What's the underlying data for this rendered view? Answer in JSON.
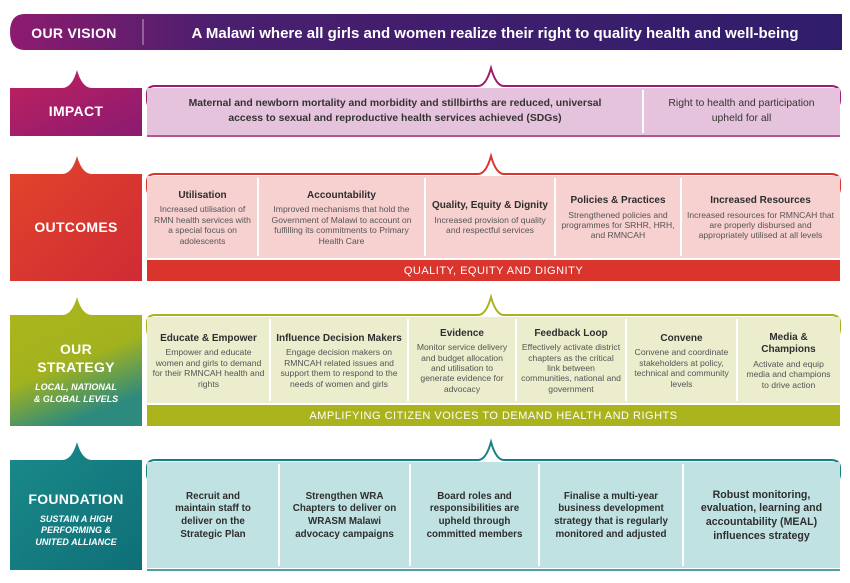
{
  "colors": {
    "vision": "#3d1f6e",
    "impact": "#9c1d6a",
    "impact_fill": "#e6c1dc",
    "outcomes": "#d9352d",
    "outcomes_fill": "#f6cfcf",
    "strategy": "#aab31c",
    "strategy_fill": "#eaedcc",
    "foundation": "#178084",
    "foundation_fill": "#bfe1e1"
  },
  "vision": {
    "label": "OUR VISION",
    "text": "A Malawi where all girls and women realize their right to quality health and well-being"
  },
  "impact": {
    "label": "IMPACT",
    "cells": [
      {
        "text": "Maternal and newborn mortality and morbidity and stillbirths are reduced, universal access to sexual and reproductive health services achieved (SDGs)"
      },
      {
        "text": "Right to health and participation upheld for all"
      }
    ]
  },
  "outcomes": {
    "label": "OUTCOMES",
    "cells": [
      {
        "title": "Utilisation",
        "body": "Increased utilisation of RMN health services with a special focus on adolescents"
      },
      {
        "title": "Accountability",
        "body": "Improved mechanisms that hold the Government of Malawi to account on fulfilling its commitments to Primary Health Care"
      },
      {
        "title": "Quality, Equity & Dignity",
        "body": "Increased provision of quality and respectful services"
      },
      {
        "title": "Policies & Practices",
        "body": "Strengthened policies and programmes for SRHR, HRH, and RMNCAH"
      },
      {
        "title": "Increased Resources",
        "body": "Increased resources for RMNCAH that are properly disbursed and appropriately utilised at all levels"
      }
    ],
    "strip": "QUALITY, EQUITY AND DIGNITY"
  },
  "strategy": {
    "label": "OUR STRATEGY",
    "sublabel_1": "LOCAL, NATIONAL",
    "sublabel_2": "& GLOBAL LEVELS",
    "cells": [
      {
        "title": "Educate & Empower",
        "body": "Empower and educate women and girls to demand for their RMNCAH health and rights"
      },
      {
        "title": "Influence Decision Makers",
        "body": "Engage decision makers on RMNCAH related issues and support them to respond to the needs of women and girls"
      },
      {
        "title": "Evidence",
        "body": "Monitor service delivery and budget allocation and utilisation to generate evidence for advocacy"
      },
      {
        "title": "Feedback Loop",
        "body": "Effectively activate district chapters as the critical link between communities, national and government"
      },
      {
        "title": "Convene",
        "body": "Convene and coordinate stakeholders at policy, technical and community levels"
      },
      {
        "title": "Media & Champions",
        "body": "Activate and equip media and champions to drive action"
      }
    ],
    "strip": "AMPLIFYING CITIZEN VOICES TO DEMAND HEALTH AND RIGHTS"
  },
  "foundation": {
    "label": "FOUNDATION",
    "sublabel_1": "SUSTAIN A HIGH",
    "sublabel_2": "PERFORMING &",
    "sublabel_3": "UNITED ALLIANCE",
    "cells": [
      {
        "text": "Recruit and maintain staff to deliver on the Strategic Plan"
      },
      {
        "text": "Strengthen WRA Chapters to deliver on WRASM Malawi advocacy campaigns"
      },
      {
        "text": "Board roles and responsibilities are upheld through committed members"
      },
      {
        "text": "Finalise a multi-year business development strategy that is regularly monitored and adjusted"
      },
      {
        "text": "Robust monitoring, evaluation, learning and accountability (MEAL) influences strategy"
      }
    ]
  }
}
